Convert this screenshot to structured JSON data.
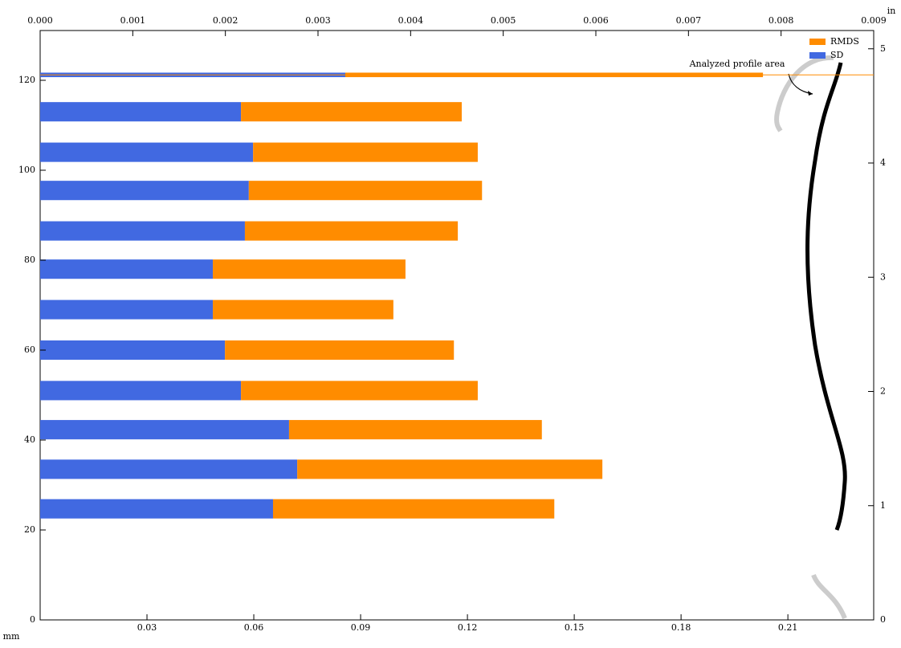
{
  "chart_data": {
    "type": "stacked-hbar",
    "x_unit_label": "mm",
    "y2_unit_label": "in",
    "annotation": "Analyzed profile area",
    "y": [
      24.7,
      33.5,
      42.3,
      51,
      60,
      69,
      78,
      86.5,
      95.5,
      104,
      113,
      121.2
    ],
    "bar_height": [
      4.3,
      4.3,
      4.3,
      4.3,
      4.3,
      4.3,
      4.3,
      4.3,
      4.3,
      4.3,
      4.3,
      1
    ],
    "series": [
      {
        "name": "SD",
        "color": "#4169e1",
        "values": [
          0.0654,
          0.0722,
          0.0699,
          0.0564,
          0.0519,
          0.0485,
          0.0485,
          0.0575,
          0.0586,
          0.0598,
          0.0564,
          0.0857
        ]
      },
      {
        "name": "RMDS",
        "color": "#ff8c00",
        "values": [
          0.079,
          0.0857,
          0.071,
          0.0665,
          0.0643,
          0.0507,
          0.0541,
          0.0598,
          0.0655,
          0.0631,
          0.062,
          0.1173
        ]
      }
    ],
    "reference_line": 121.2,
    "xlim": [
      0,
      0.2341
    ],
    "xticks": [
      0.03,
      0.06,
      0.09,
      0.12,
      0.15,
      0.18,
      0.21
    ],
    "x2lim": [
      0,
      0.009
    ],
    "x2ticks": [
      {
        "value": 0,
        "label": "0.000"
      },
      {
        "value": 0.001,
        "label": "0.001"
      },
      {
        "value": 0.002,
        "label": "0.002"
      },
      {
        "value": 0.003,
        "label": "0.003"
      },
      {
        "value": 0.004,
        "label": "0.004"
      },
      {
        "value": 0.005,
        "label": "0.005"
      },
      {
        "value": 0.006,
        "label": "0.006"
      },
      {
        "value": 0.007,
        "label": "0.007"
      },
      {
        "value": 0.008,
        "label": "0.008"
      },
      {
        "value": 0.009,
        "label": "0.009"
      }
    ],
    "ylim": [
      0,
      131.07
    ],
    "yticks": [
      0,
      20,
      40,
      60,
      80,
      100,
      120
    ],
    "y2lim": [
      0,
      5.16
    ],
    "y2ticks": [
      0,
      1,
      2,
      3,
      4,
      5
    ],
    "legend": "upper right"
  }
}
